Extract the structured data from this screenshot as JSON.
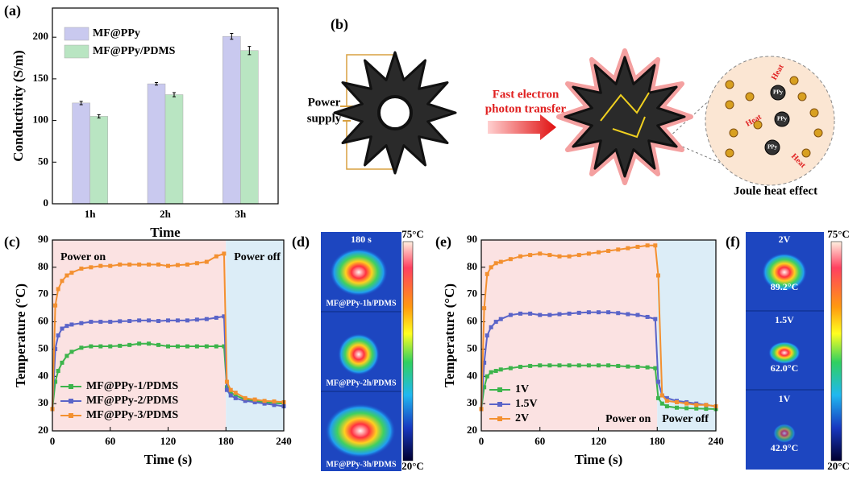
{
  "chart_data": [
    {
      "type": "bar",
      "label": "(a)",
      "x_label": "Time",
      "y_label": "Conductivity (S/m)",
      "categories": [
        "1h",
        "2h",
        "3h"
      ],
      "series": [
        {
          "name": "MF@PPy",
          "color": "#c9c9ef",
          "values": [
            121,
            144,
            201
          ],
          "errors": [
            2,
            1.5,
            3.5
          ]
        },
        {
          "name": "MF@PPy/PDMS",
          "color": "#b9e5c2",
          "values": [
            105,
            131,
            184
          ],
          "errors": [
            2,
            2.5,
            5
          ]
        }
      ],
      "ylim": [
        0,
        235
      ],
      "yticks": [
        0,
        50,
        100,
        150,
        200
      ],
      "legend": "upper left"
    },
    {
      "type": "line",
      "label": "(c)",
      "x_label": "Time (s)",
      "y_label": "Temperature (°C)",
      "x": [
        0,
        3,
        6,
        10,
        15,
        20,
        30,
        40,
        50,
        60,
        70,
        80,
        90,
        100,
        110,
        120,
        130,
        140,
        150,
        160,
        170,
        178,
        181,
        185,
        190,
        200,
        210,
        220,
        230,
        240
      ],
      "series": [
        {
          "name": "MF@PPy-1/PDMS",
          "color": "#3cb44b",
          "values": [
            28,
            38,
            42,
            45,
            47.5,
            49,
            50.5,
            51,
            51,
            51,
            51.2,
            51.5,
            52,
            52,
            51.5,
            51,
            51,
            51,
            51,
            51,
            51,
            51,
            36,
            34,
            33,
            31.5,
            31,
            30.5,
            30.2,
            30
          ]
        },
        {
          "name": "MF@PPy-2/PDMS",
          "color": "#5a64c8",
          "values": [
            28,
            50,
            55,
            57.5,
            58.5,
            59,
            59.5,
            60,
            60,
            60,
            60.2,
            60.3,
            60.5,
            60.5,
            60.3,
            60.5,
            60.5,
            60.5,
            60.8,
            61,
            61.5,
            62,
            35,
            33,
            32,
            31,
            30.5,
            30,
            29.5,
            29
          ]
        },
        {
          "name": "MF@PPy-3/PDMS",
          "color": "#f39030",
          "values": [
            28,
            66,
            72,
            75,
            77,
            78,
            79.5,
            80,
            80.5,
            80.5,
            81,
            81,
            81,
            81,
            81,
            80.5,
            80.8,
            81,
            81.5,
            82,
            84,
            85,
            38,
            35,
            34,
            32,
            31.5,
            31,
            30.8,
            30.5
          ]
        }
      ],
      "regions": [
        {
          "label": "Power on",
          "x": [
            0,
            180
          ],
          "color": "#fbe2e2"
        },
        {
          "label": "Power off",
          "x": [
            180,
            240
          ],
          "color": "#dcedf7"
        }
      ],
      "xlim": [
        0,
        240
      ],
      "xticks": [
        0,
        60,
        120,
        180,
        240
      ],
      "ylim": [
        20,
        90
      ],
      "yticks": [
        20,
        30,
        40,
        50,
        60,
        70,
        80,
        90
      ],
      "legend": "lower left"
    },
    {
      "type": "line",
      "label": "(e)",
      "x_label": "Time (s)",
      "y_label": "Temperature (°C)",
      "x": [
        0,
        3,
        6,
        10,
        15,
        20,
        30,
        40,
        50,
        60,
        70,
        80,
        90,
        100,
        110,
        120,
        130,
        140,
        150,
        160,
        170,
        178,
        181,
        185,
        190,
        200,
        210,
        220,
        230,
        240
      ],
      "series": [
        {
          "name": "1V",
          "color": "#3cb44b",
          "values": [
            28,
            36,
            40,
            41.5,
            42,
            42.5,
            43,
            43.5,
            43.8,
            44,
            44,
            44,
            44,
            44,
            44,
            44,
            44,
            43.8,
            43.6,
            43.5,
            43.3,
            43,
            32,
            30,
            29,
            28.5,
            28.3,
            28.2,
            28.1,
            28
          ]
        },
        {
          "name": "1.5V",
          "color": "#5a64c8",
          "values": [
            28,
            45,
            55,
            58,
            60,
            61,
            62.5,
            63,
            63,
            62.5,
            62.5,
            62.8,
            63,
            63.3,
            63.5,
            63.5,
            63.5,
            63.2,
            62.8,
            62.5,
            61.8,
            61,
            38,
            33,
            32,
            31,
            30.5,
            30,
            29.5,
            29
          ]
        },
        {
          "name": "2V",
          "color": "#f39030",
          "values": [
            28,
            65,
            77.5,
            80,
            81.5,
            82,
            83,
            84,
            84.5,
            85,
            84.5,
            84,
            84,
            84.5,
            85,
            85.5,
            86,
            86.5,
            87,
            87.5,
            88,
            88,
            77,
            33,
            31,
            30.5,
            30,
            29.5,
            29.5,
            29
          ]
        }
      ],
      "regions": [
        {
          "label": "Power on",
          "x": [
            0,
            180
          ],
          "color": "#fbe2e2"
        },
        {
          "label": "Power off",
          "x": [
            180,
            240
          ],
          "color": "#dcedf7"
        }
      ],
      "xlim": [
        0,
        240
      ],
      "xticks": [
        0,
        60,
        120,
        180,
        240
      ],
      "ylim": [
        20,
        90
      ],
      "yticks": [
        20,
        30,
        40,
        50,
        60,
        70,
        80,
        90
      ],
      "legend": "lower left"
    }
  ],
  "diagram": {
    "label": "(b)",
    "power_supply": [
      "Power",
      "supply"
    ],
    "arrow_label": [
      "Fast electron",
      "photon transfer"
    ],
    "particle": "PPy",
    "heat": "Heat",
    "caption": "Joule heat effect"
  },
  "thermal_images": [
    {
      "label": "(d)",
      "scale_max": "75°C",
      "scale_min": "20°C",
      "time": "180 s",
      "frames": [
        "MF@PPy-1h/PDMS",
        "MF@PPy-2h/PDMS",
        "MF@PPy-3h/PDMS"
      ]
    },
    {
      "label": "(f)",
      "scale_max": "75°C",
      "scale_min": "20°C",
      "frames": [
        {
          "voltage": "2V",
          "temperature": "89.2°C"
        },
        {
          "voltage": "1.5V",
          "temperature": "62.0°C"
        },
        {
          "voltage": "1V",
          "temperature": "42.9°C"
        }
      ]
    }
  ]
}
